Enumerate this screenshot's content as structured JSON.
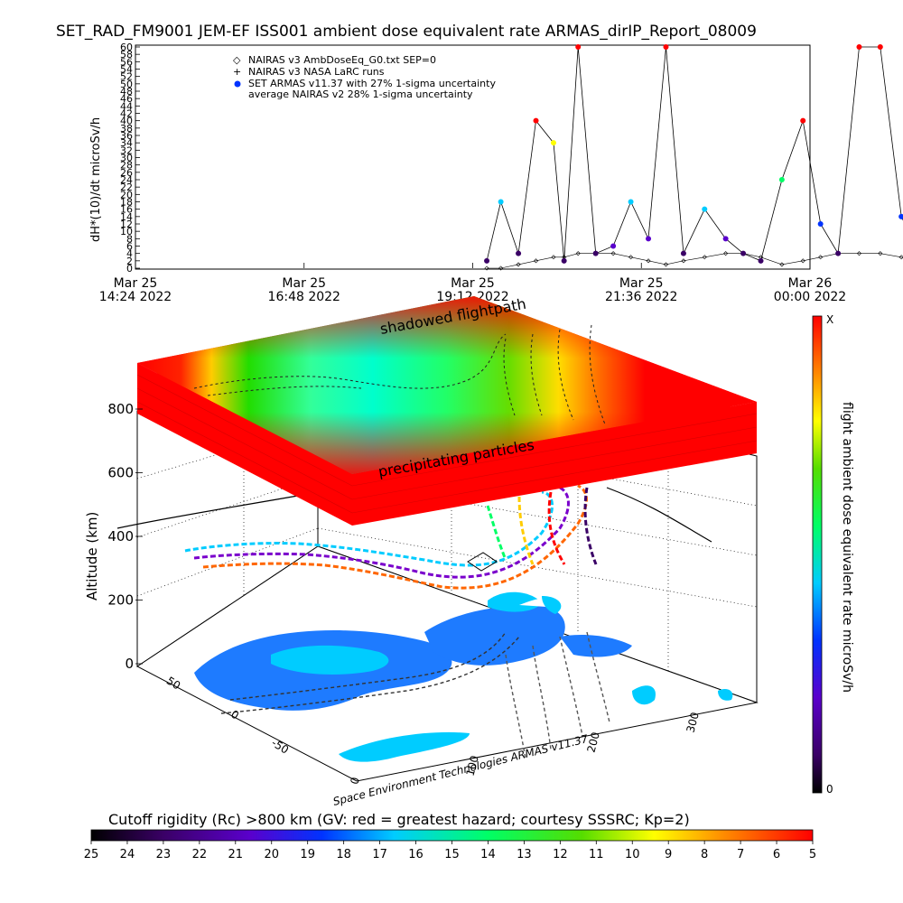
{
  "header": {
    "title": "SET_RAD_FM9001   JEM-EF ISS001 ambient dose equivalent rate ARMAS_dirIP_Report_08009"
  },
  "chart_data": [
    {
      "type": "line",
      "ylabel": "dH*(10)/dt microSv/h",
      "ylim": [
        0,
        60
      ],
      "ytick_labels": [
        "0",
        "2",
        "4",
        "6",
        "8",
        "10",
        "12",
        "14",
        "16",
        "18",
        "20",
        "22",
        "24",
        "26",
        "28",
        "30",
        "32",
        "34",
        "36",
        "38",
        "40",
        "42",
        "44",
        "46",
        "48",
        "50",
        "52",
        "54",
        "56",
        "58",
        "60"
      ],
      "xtick_labels": [
        {
          "line1": "Mar 25",
          "line2": "14:24 2022"
        },
        {
          "line1": "Mar 25",
          "line2": "16:48 2022"
        },
        {
          "line1": "Mar 25",
          "line2": "19:12 2022"
        },
        {
          "line1": "Mar 25",
          "line2": "21:36 2022"
        },
        {
          "line1": "Mar 26",
          "line2": "00:00 2022"
        }
      ],
      "legend": [
        "NAIRAS v3 AmbDoseEq_G0.txt SEP=0",
        "NAIRAS v3 NASA LaRC runs",
        "SET ARMAS v11.37 with 27% 1-sigma uncertainty",
        "average NAIRAS v2 28% 1-sigma uncertainty"
      ],
      "x_hours_since_start": [
        5.0,
        5.2,
        5.45,
        5.7,
        5.95,
        6.1,
        6.3,
        6.55,
        6.8,
        7.05,
        7.3,
        7.55,
        7.8,
        8.1,
        8.4,
        8.65,
        8.9,
        9.2,
        9.5,
        9.75,
        10.0,
        10.3,
        10.6,
        10.9,
        11.2,
        11.4,
        11.6,
        11.85,
        12.1,
        12.35,
        12.6,
        12.85,
        13.1,
        13.35,
        13.6,
        13.85,
        14.1,
        14.35,
        14.6,
        14.85,
        15.1,
        15.35,
        15.6,
        15.85,
        16.1,
        16.35,
        16.6,
        16.85,
        17.1,
        17.35,
        17.6,
        17.85,
        18.1,
        18.35,
        18.6,
        18.85,
        19.1,
        19.35,
        19.5
      ],
      "armas_values": [
        2,
        18,
        4,
        40,
        34,
        2,
        60,
        4,
        6,
        18,
        8,
        60,
        4,
        16,
        8,
        4,
        2,
        24,
        40,
        12,
        4,
        60,
        60,
        14,
        2,
        2,
        14,
        28,
        10,
        2,
        4,
        16,
        40,
        10,
        2,
        2,
        12,
        40,
        20,
        4,
        2,
        20,
        40,
        4,
        14,
        12,
        2,
        4,
        28,
        32,
        12,
        2,
        2,
        6,
        10,
        22,
        32,
        10,
        6
      ],
      "naira_model_values": [
        0,
        0,
        1,
        2,
        3,
        3,
        4,
        4,
        4,
        3,
        2,
        1,
        2,
        3,
        4,
        4,
        3,
        1,
        2,
        3,
        4,
        4,
        4,
        3,
        1,
        1,
        3,
        4,
        4,
        3,
        2,
        2,
        4,
        4,
        4,
        3,
        2,
        2,
        4,
        4,
        4,
        3,
        2,
        3,
        4,
        4,
        4,
        3,
        2,
        3,
        4,
        4,
        4,
        3,
        2,
        2,
        4,
        4,
        4
      ]
    },
    {
      "type": "scatter-3d",
      "zlabel": "Altitude (km)",
      "ztick_labels": [
        "0",
        "200",
        "400",
        "600",
        "800"
      ],
      "lat_tick_labels": [
        "-50",
        "0",
        "50"
      ],
      "lon_tick_labels": [
        "0",
        "100",
        "200",
        "300"
      ],
      "colorbar_label": "flight ambient dose equivalent rate microSv/h",
      "colorbar_top": "X",
      "colorbar_bottom": "0",
      "annotations": [
        "shadowed flightpath",
        "precipitating particles"
      ],
      "credit": "Space Environment Technologies ARMAS v11.37"
    }
  ],
  "bottom_colorbar": {
    "title": "Cutoff rigidity (Rc) >800 km (GV: red = greatest hazard; courtesy SSSRC; Kp=2)",
    "tick_labels": [
      "25",
      "24",
      "23",
      "22",
      "21",
      "20",
      "19",
      "18",
      "17",
      "16",
      "15",
      "14",
      "13",
      "12",
      "11",
      "10",
      "9",
      "8",
      "7",
      "6",
      "5"
    ]
  }
}
